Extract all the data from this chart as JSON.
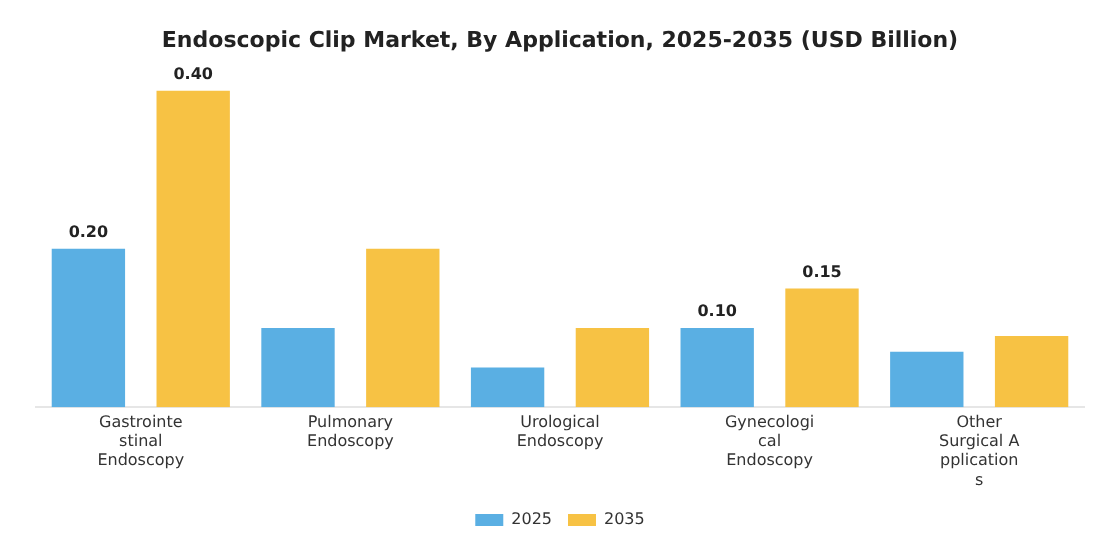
{
  "chart_data": {
    "type": "bar",
    "title": "Endoscopic Clip Market, By Application, 2025-2035 (USD Billion)",
    "categories": [
      "Gastrointe\nstinal\nEndoscopy",
      "Pulmonary\nEndoscopy",
      "Urological\nEndoscopy",
      "Gynecologi\ncal\nEndoscopy",
      "Other\nSurgical A\npplication\ns"
    ],
    "series": [
      {
        "name": "2025",
        "color": "#5aafe3",
        "values": [
          0.2,
          0.1,
          0.05,
          0.1,
          0.07
        ],
        "value_labels": [
          "0.20",
          null,
          null,
          "0.10",
          null
        ]
      },
      {
        "name": "2035",
        "color": "#f7c244",
        "values": [
          0.4,
          0.2,
          0.1,
          0.15,
          0.09
        ],
        "value_labels": [
          "0.40",
          null,
          null,
          "0.15",
          null
        ]
      }
    ],
    "legend": "bottom",
    "grid": false
  }
}
